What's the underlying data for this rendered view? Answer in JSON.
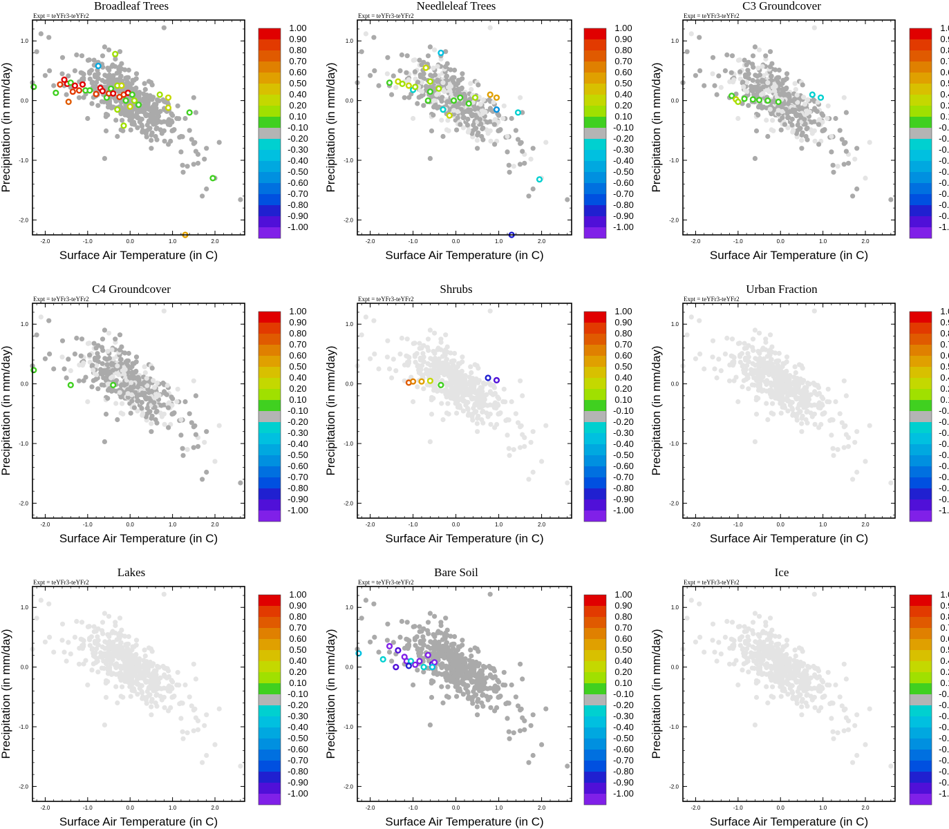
{
  "expt_label": "Expt = teYFr3-teYFr2",
  "colorbar": {
    "labels": [
      "1.00",
      "0.90",
      "0.80",
      "0.70",
      "0.60",
      "0.50",
      "0.40",
      "0.20",
      "0.10",
      "-0.10",
      "-0.20",
      "-0.30",
      "-0.40",
      "-0.50",
      "-0.60",
      "-0.70",
      "-0.80",
      "-0.90",
      "-1.00"
    ],
    "colors": [
      "#e00000",
      "#e23a00",
      "#e05a00",
      "#e08000",
      "#e0a000",
      "#d8c000",
      "#c4d800",
      "#a0e000",
      "#40d020",
      "#b4b4b4",
      "#00d0d0",
      "#00c0e0",
      "#00a8e0",
      "#0090e0",
      "#0070e0",
      "#0050e0",
      "#2020d0",
      "#5010d8",
      "#8020e8"
    ]
  },
  "chart_data": [
    {
      "type": "scatter",
      "title": "Broadleaf Trees",
      "xlabel": "Surface Air Temperature (in C)",
      "ylabel": "Precipitation (in mm/day)",
      "xlim": [
        -2.3,
        2.7
      ],
      "ylim": [
        -2.25,
        1.35
      ],
      "xticks": [
        "-2.0",
        "-1.0",
        "0.0",
        "1.0",
        "2.0"
      ],
      "yticks": [
        "1.0",
        "0.0",
        "-1.0",
        "-2.0"
      ],
      "background_shade": "dark",
      "series": [
        {
          "name": "colored",
          "points": [
            {
              "x": -2.27,
              "y": 0.23,
              "c": "#40d020"
            },
            {
              "x": -1.75,
              "y": 0.13,
              "c": "#40d020"
            },
            {
              "x": -1.65,
              "y": 0.27,
              "c": "#e23a00"
            },
            {
              "x": -1.55,
              "y": 0.35,
              "c": "#e00000"
            },
            {
              "x": -1.48,
              "y": 0.28,
              "c": "#e00000"
            },
            {
              "x": -1.4,
              "y": 0.3,
              "c": "#40d020"
            },
            {
              "x": -1.35,
              "y": 0.15,
              "c": "#e23a00"
            },
            {
              "x": -1.3,
              "y": 0.25,
              "c": "#e00000"
            },
            {
              "x": -1.45,
              "y": -0.02,
              "c": "#e05a00"
            },
            {
              "x": -1.2,
              "y": 0.17,
              "c": "#e23a00"
            },
            {
              "x": -1.12,
              "y": 0.27,
              "c": "#e00000"
            },
            {
              "x": -1.05,
              "y": 0.17,
              "c": "#40d020"
            },
            {
              "x": -0.95,
              "y": 0.17,
              "c": "#40d020"
            },
            {
              "x": -0.8,
              "y": 0.11,
              "c": "#e23a00"
            },
            {
              "x": -0.75,
              "y": 0.58,
              "c": "#00a8e0"
            },
            {
              "x": -0.7,
              "y": 0.21,
              "c": "#e00000"
            },
            {
              "x": -0.65,
              "y": 0.16,
              "c": "#e00000"
            },
            {
              "x": -0.55,
              "y": 0.05,
              "c": "#40d020"
            },
            {
              "x": -0.5,
              "y": 0.12,
              "c": "#e23a00"
            },
            {
              "x": -0.45,
              "y": 0.2,
              "c": "#40d020"
            },
            {
              "x": -0.4,
              "y": 0.12,
              "c": "#e00000"
            },
            {
              "x": -0.35,
              "y": 0.78,
              "c": "#a0e000"
            },
            {
              "x": -0.3,
              "y": 0.25,
              "c": "#a0e000"
            },
            {
              "x": -0.25,
              "y": 0.06,
              "c": "#e23a00"
            },
            {
              "x": -0.2,
              "y": 0.25,
              "c": "#c4d800"
            },
            {
              "x": -0.15,
              "y": 0.1,
              "c": "#e23a00"
            },
            {
              "x": -0.1,
              "y": 0.0,
              "c": "#40d020"
            },
            {
              "x": -0.05,
              "y": 0.13,
              "c": "#e00000"
            },
            {
              "x": 0.0,
              "y": -0.1,
              "c": "#c4d800"
            },
            {
              "x": 0.05,
              "y": 0.1,
              "c": "#40d020"
            },
            {
              "x": 0.1,
              "y": 0.0,
              "c": "#a0e000"
            },
            {
              "x": 0.2,
              "y": -0.07,
              "c": "#40d020"
            },
            {
              "x": -0.3,
              "y": -0.15,
              "c": "#a0e000"
            },
            {
              "x": -0.15,
              "y": -0.42,
              "c": "#a0e000"
            },
            {
              "x": 0.7,
              "y": 0.1,
              "c": "#a0e000"
            },
            {
              "x": 0.9,
              "y": 0.05,
              "c": "#c4d800"
            },
            {
              "x": 0.9,
              "y": -0.12,
              "c": "#c4d800"
            },
            {
              "x": 1.4,
              "y": -0.2,
              "c": "#40d020"
            },
            {
              "x": 1.95,
              "y": -1.3,
              "c": "#40d020"
            },
            {
              "x": 1.3,
              "y": -2.25,
              "c": "#e0a000"
            }
          ]
        }
      ]
    },
    {
      "type": "scatter",
      "title": "Needleleaf Trees",
      "xlabel": "Surface Air Temperature (in C)",
      "ylabel": "Precipitation (in mm/day)",
      "xlim": [
        -2.3,
        2.7
      ],
      "ylim": [
        -2.25,
        1.35
      ],
      "xticks": [
        "-2.0",
        "-1.0",
        "0.0",
        "1.0",
        "2.0"
      ],
      "yticks": [
        "1.0",
        "0.0",
        "-1.0",
        "-2.0"
      ],
      "background_shade": "mixed",
      "series": [
        {
          "name": "colored",
          "points": [
            {
              "x": -1.55,
              "y": 0.3,
              "c": "#40d020"
            },
            {
              "x": -1.35,
              "y": 0.32,
              "c": "#c4d800"
            },
            {
              "x": -1.25,
              "y": 0.28,
              "c": "#a0e000"
            },
            {
              "x": -1.1,
              "y": 0.25,
              "c": "#c4d800"
            },
            {
              "x": -1.0,
              "y": 0.18,
              "c": "#00d0d0"
            },
            {
              "x": -0.95,
              "y": 0.23,
              "c": "#a0e000"
            },
            {
              "x": -0.7,
              "y": 0.55,
              "c": "#c4d800"
            },
            {
              "x": -0.6,
              "y": 0.32,
              "c": "#a0e000"
            },
            {
              "x": -0.6,
              "y": 0.15,
              "c": "#40d020"
            },
            {
              "x": -0.65,
              "y": 0.0,
              "c": "#40d020"
            },
            {
              "x": -0.35,
              "y": 0.8,
              "c": "#00c0e0"
            },
            {
              "x": -0.4,
              "y": 0.2,
              "c": "#a0e000"
            },
            {
              "x": -0.3,
              "y": -0.15,
              "c": "#00d0d0"
            },
            {
              "x": -0.15,
              "y": -0.25,
              "c": "#c4d800"
            },
            {
              "x": -0.05,
              "y": 0.0,
              "c": "#40d020"
            },
            {
              "x": 0.1,
              "y": 0.05,
              "c": "#40d020"
            },
            {
              "x": 0.3,
              "y": -0.05,
              "c": "#40d020"
            },
            {
              "x": 0.45,
              "y": 0.05,
              "c": "#a0e000"
            },
            {
              "x": 0.8,
              "y": 0.1,
              "c": "#e0a000"
            },
            {
              "x": 0.95,
              "y": 0.05,
              "c": "#e0a000"
            },
            {
              "x": 0.95,
              "y": -0.15,
              "c": "#0090e0"
            },
            {
              "x": 1.45,
              "y": -0.2,
              "c": "#00d0d0"
            },
            {
              "x": 1.95,
              "y": -1.32,
              "c": "#00d0d0"
            },
            {
              "x": 1.3,
              "y": -2.25,
              "c": "#2020d0"
            }
          ]
        }
      ]
    },
    {
      "type": "scatter",
      "title": "C3 Groundcover",
      "xlabel": "Surface Air Temperature (in C)",
      "ylabel": "Precipitation (in mm/day)",
      "xlim": [
        -2.3,
        2.7
      ],
      "ylim": [
        -2.25,
        1.35
      ],
      "xticks": [
        "-2.0",
        "-1.0",
        "0.0",
        "1.0",
        "2.0"
      ],
      "yticks": [
        "1.0",
        "0.0",
        "-1.0",
        "-2.0"
      ],
      "background_shade": "mixed",
      "series": [
        {
          "name": "colored",
          "points": [
            {
              "x": -1.15,
              "y": 0.08,
              "c": "#40d020"
            },
            {
              "x": -1.05,
              "y": 0.02,
              "c": "#c4d800"
            },
            {
              "x": -1.0,
              "y": -0.02,
              "c": "#a0e000"
            },
            {
              "x": -0.85,
              "y": 0.03,
              "c": "#40d020"
            },
            {
              "x": -0.65,
              "y": 0.02,
              "c": "#40d020"
            },
            {
              "x": -0.5,
              "y": 0.01,
              "c": "#40d020"
            },
            {
              "x": -0.3,
              "y": 0.0,
              "c": "#40d020"
            },
            {
              "x": -0.05,
              "y": -0.02,
              "c": "#40d020"
            },
            {
              "x": 0.75,
              "y": 0.1,
              "c": "#00d0d0"
            },
            {
              "x": 0.95,
              "y": 0.05,
              "c": "#00d0d0"
            }
          ]
        }
      ]
    },
    {
      "type": "scatter",
      "title": "C4 Groundcover",
      "xlabel": "Surface Air Temperature (in C)",
      "ylabel": "Precipitation (in mm/day)",
      "xlim": [
        -2.3,
        2.7
      ],
      "ylim": [
        -2.25,
        1.35
      ],
      "xticks": [
        "-2.0",
        "-1.0",
        "0.0",
        "1.0",
        "2.0"
      ],
      "yticks": [
        "1.0",
        "0.0",
        "-1.0",
        "-2.0"
      ],
      "background_shade": "mixed",
      "series": [
        {
          "name": "colored",
          "points": [
            {
              "x": -2.27,
              "y": 0.23,
              "c": "#40d020"
            },
            {
              "x": -1.4,
              "y": -0.02,
              "c": "#40d020"
            },
            {
              "x": -0.4,
              "y": -0.02,
              "c": "#40d020"
            }
          ]
        }
      ]
    },
    {
      "type": "scatter",
      "title": "Shrubs",
      "xlabel": "Surface Air Temperature (in C)",
      "ylabel": "Precipitation (in mm/day)",
      "xlim": [
        -2.3,
        2.7
      ],
      "ylim": [
        -2.25,
        1.35
      ],
      "xticks": [
        "-2.0",
        "-1.0",
        "0.0",
        "1.0",
        "2.0"
      ],
      "yticks": [
        "1.0",
        "0.0",
        "-1.0",
        "-2.0"
      ],
      "background_shade": "light",
      "series": [
        {
          "name": "colored",
          "points": [
            {
              "x": -1.1,
              "y": 0.02,
              "c": "#e05a00"
            },
            {
              "x": -1.0,
              "y": 0.04,
              "c": "#e08000"
            },
            {
              "x": -0.8,
              "y": 0.04,
              "c": "#e0a000"
            },
            {
              "x": -0.6,
              "y": 0.05,
              "c": "#c4d800"
            },
            {
              "x": -0.35,
              "y": -0.02,
              "c": "#40d020"
            },
            {
              "x": 0.75,
              "y": 0.1,
              "c": "#2020d0"
            },
            {
              "x": 0.95,
              "y": 0.06,
              "c": "#5010d8"
            }
          ]
        }
      ]
    },
    {
      "type": "scatter",
      "title": "Urban Fraction",
      "xlabel": "Surface Air Temperature (in C)",
      "ylabel": "Precipitation (in mm/day)",
      "xlim": [
        -2.3,
        2.7
      ],
      "ylim": [
        -2.25,
        1.35
      ],
      "xticks": [
        "-2.0",
        "-1.0",
        "0.0",
        "1.0",
        "2.0"
      ],
      "yticks": [
        "1.0",
        "0.0",
        "-1.0",
        "-2.0"
      ],
      "background_shade": "light",
      "series": [
        {
          "name": "colored",
          "points": []
        }
      ]
    },
    {
      "type": "scatter",
      "title": "Lakes",
      "xlabel": "Surface Air Temperature (in C)",
      "ylabel": "Precipitation (in mm/day)",
      "xlim": [
        -2.3,
        2.7
      ],
      "ylim": [
        -2.25,
        1.35
      ],
      "xticks": [
        "-2.0",
        "-1.0",
        "0.0",
        "1.0",
        "2.0"
      ],
      "yticks": [
        "1.0",
        "0.0",
        "-1.0",
        "-2.0"
      ],
      "background_shade": "light",
      "series": [
        {
          "name": "colored",
          "points": []
        }
      ]
    },
    {
      "type": "scatter",
      "title": "Bare Soil",
      "xlabel": "Surface Air Temperature (in C)",
      "ylabel": "Precipitation (in mm/day)",
      "xlim": [
        -2.3,
        2.7
      ],
      "ylim": [
        -2.25,
        1.35
      ],
      "xticks": [
        "-2.0",
        "-1.0",
        "0.0",
        "1.0",
        "2.0"
      ],
      "yticks": [
        "1.0",
        "0.0",
        "-1.0",
        "-2.0"
      ],
      "background_shade": "dark",
      "series": [
        {
          "name": "colored",
          "points": [
            {
              "x": -2.27,
              "y": 0.23,
              "c": "#00c0e0"
            },
            {
              "x": -1.7,
              "y": 0.13,
              "c": "#00d0d0"
            },
            {
              "x": -1.55,
              "y": 0.35,
              "c": "#8020e8"
            },
            {
              "x": -1.35,
              "y": 0.28,
              "c": "#5010d8"
            },
            {
              "x": -1.2,
              "y": 0.17,
              "c": "#8020e8"
            },
            {
              "x": -1.15,
              "y": 0.1,
              "c": "#8020e8"
            },
            {
              "x": -1.4,
              "y": 0.0,
              "c": "#5010d8"
            },
            {
              "x": -1.05,
              "y": 0.1,
              "c": "#00d0d0"
            },
            {
              "x": -1.1,
              "y": 0.02,
              "c": "#2020d0"
            },
            {
              "x": -0.95,
              "y": 0.04,
              "c": "#8020e8"
            },
            {
              "x": -0.85,
              "y": 0.1,
              "c": "#8020e8"
            },
            {
              "x": -0.65,
              "y": 0.2,
              "c": "#8020e8"
            },
            {
              "x": -0.55,
              "y": 0.05,
              "c": "#5010d8"
            },
            {
              "x": -0.5,
              "y": 0.08,
              "c": "#8020e8"
            },
            {
              "x": -0.55,
              "y": 0.0,
              "c": "#00c0e0"
            },
            {
              "x": -0.75,
              "y": 0.0,
              "c": "#00d0d0"
            }
          ]
        }
      ]
    },
    {
      "type": "scatter",
      "title": "Ice",
      "xlabel": "Surface Air Temperature (in C)",
      "ylabel": "Precipitation (in mm/day)",
      "xlim": [
        -2.3,
        2.7
      ],
      "ylim": [
        -2.25,
        1.35
      ],
      "xticks": [
        "-2.0",
        "-1.0",
        "0.0",
        "1.0",
        "2.0"
      ],
      "yticks": [
        "1.0",
        "0.0",
        "-1.0",
        "-2.0"
      ],
      "background_shade": "light",
      "series": [
        {
          "name": "colored",
          "points": []
        }
      ]
    }
  ]
}
